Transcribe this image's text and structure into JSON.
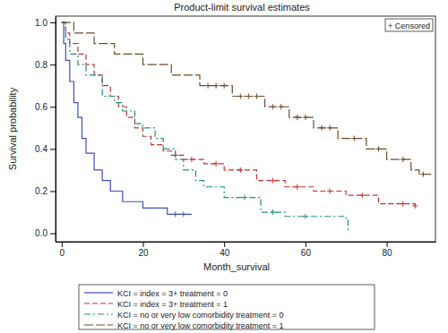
{
  "chart_data": {
    "type": "line",
    "title": "Product-limit survival estimates",
    "x_label": "Month_survival",
    "y_label": "Survival probability",
    "annotations": [
      "+ Censored"
    ],
    "xlim": [
      -1.5,
      92
    ],
    "ylim": [
      -0.04,
      1.03
    ],
    "xticks": [
      0,
      20,
      40,
      60,
      80
    ],
    "yticks": [
      {
        "value": 0,
        "label": "0.0"
      },
      {
        "value": 0.2,
        "label": "0.2"
      },
      {
        "value": 0.4,
        "label": "0.4"
      },
      {
        "value": 0.6,
        "label": "0.6"
      },
      {
        "value": 0.8,
        "label": "0.8"
      },
      {
        "value": 1,
        "label": "1.0"
      }
    ],
    "grid": false,
    "legend": "bottom",
    "series": [
      {
        "name": "KCI = index = 3+ treatment = 0",
        "color": "#3c4fc4",
        "line_style": "solid",
        "x": [
          0,
          0.5,
          1,
          2,
          3,
          4,
          5,
          6,
          8,
          10,
          12,
          15,
          20,
          26,
          32
        ],
        "values": [
          1,
          0.9,
          0.82,
          0.72,
          0.62,
          0.55,
          0.45,
          0.38,
          0.3,
          0.25,
          0.2,
          0.15,
          0.12,
          0.09,
          0.09
        ],
        "censored": {
          "x": [
            28,
            30
          ],
          "y": [
            0.09,
            0.09
          ]
        }
      },
      {
        "name": "KCI = index = 3+ treatment = 1",
        "color": "#c8312f",
        "line_style": "dashed",
        "x": [
          0,
          1,
          2,
          4,
          6,
          8,
          10,
          12,
          14,
          16,
          18,
          20,
          22,
          25,
          27,
          30,
          35,
          40,
          48,
          55,
          62,
          70,
          78,
          87
        ],
        "values": [
          1,
          0.95,
          0.9,
          0.85,
          0.8,
          0.75,
          0.7,
          0.65,
          0.6,
          0.55,
          0.5,
          0.46,
          0.42,
          0.39,
          0.37,
          0.35,
          0.33,
          0.3,
          0.25,
          0.22,
          0.2,
          0.18,
          0.14,
          0.13
        ],
        "censored": {
          "x": [
            28,
            32,
            38,
            44,
            52,
            58,
            66,
            74,
            84,
            87
          ],
          "y": [
            0.37,
            0.35,
            0.33,
            0.3,
            0.25,
            0.22,
            0.2,
            0.18,
            0.14,
            0.13
          ]
        }
      },
      {
        "name": "KCI = no or very low comorbidity treatment = 0",
        "color": "#1f8f7a",
        "line_style": "dashdot",
        "x": [
          0,
          1,
          2,
          4,
          6,
          10,
          13,
          15,
          18,
          20,
          23,
          25,
          28,
          30,
          33,
          35,
          40,
          47,
          49,
          55,
          70,
          70.5
        ],
        "values": [
          1,
          0.92,
          0.85,
          0.8,
          0.75,
          0.65,
          0.62,
          0.58,
          0.52,
          0.5,
          0.45,
          0.4,
          0.35,
          0.3,
          0.25,
          0.22,
          0.17,
          0.17,
          0.1,
          0.08,
          0.06,
          0
        ],
        "censored": {
          "x": [
            45,
            52,
            60
          ],
          "y": [
            0.17,
            0.1,
            0.08
          ]
        }
      },
      {
        "name": "KCI = no or very low comorbidity treatment = 1",
        "color": "#6e4b2b",
        "line_style": "longdash",
        "x": [
          0,
          3,
          8,
          13,
          20,
          27,
          34,
          42,
          50,
          56,
          62,
          68,
          75,
          80,
          86,
          88,
          91
        ],
        "values": [
          1,
          0.95,
          0.9,
          0.85,
          0.8,
          0.75,
          0.7,
          0.65,
          0.6,
          0.55,
          0.5,
          0.45,
          0.4,
          0.35,
          0.3,
          0.28,
          0.28
        ],
        "censored": {
          "x": [
            36,
            38,
            40,
            44,
            46,
            48,
            52,
            54,
            58,
            60,
            64,
            66,
            72,
            78,
            84,
            89
          ],
          "y": [
            0.7,
            0.7,
            0.7,
            0.65,
            0.65,
            0.65,
            0.6,
            0.6,
            0.55,
            0.55,
            0.5,
            0.5,
            0.45,
            0.4,
            0.35,
            0.28
          ]
        }
      }
    ]
  }
}
